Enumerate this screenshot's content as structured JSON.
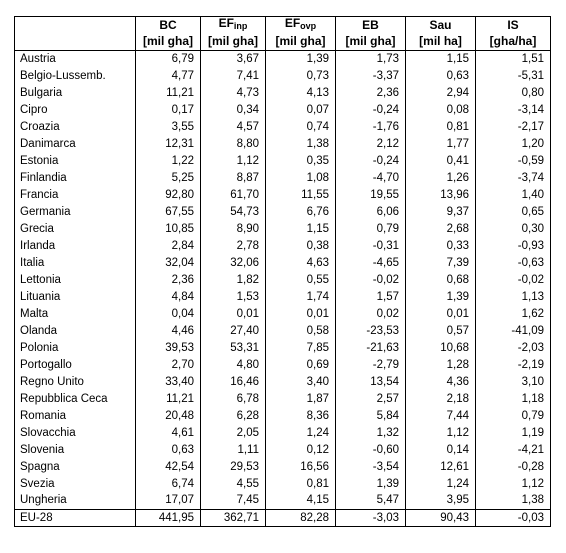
{
  "table": {
    "columns": [
      {
        "label": "BC",
        "unit": "[mil gha]"
      },
      {
        "label": "EF",
        "sub": "inp",
        "unit": "[mil gha]"
      },
      {
        "label": "EF",
        "sub": "ovp",
        "unit": "[mil gha]"
      },
      {
        "label": "EB",
        "unit": "[mil gha]"
      },
      {
        "label": "Sau",
        "unit": "[mil ha]"
      },
      {
        "label": "IS",
        "unit": "[gha/ha]"
      }
    ],
    "rows": [
      [
        "Austria",
        "6,79",
        "3,67",
        "1,39",
        "1,73",
        "1,15",
        "1,51"
      ],
      [
        "Belgio-Lussemb.",
        "4,77",
        "7,41",
        "0,73",
        "-3,37",
        "0,63",
        "-5,31"
      ],
      [
        "Bulgaria",
        "11,21",
        "4,73",
        "4,13",
        "2,36",
        "2,94",
        "0,80"
      ],
      [
        "Cipro",
        "0,17",
        "0,34",
        "0,07",
        "-0,24",
        "0,08",
        "-3,14"
      ],
      [
        "Croazia",
        "3,55",
        "4,57",
        "0,74",
        "-1,76",
        "0,81",
        "-2,17"
      ],
      [
        "Danimarca",
        "12,31",
        "8,80",
        "1,38",
        "2,12",
        "1,77",
        "1,20"
      ],
      [
        "Estonia",
        "1,22",
        "1,12",
        "0,35",
        "-0,24",
        "0,41",
        "-0,59"
      ],
      [
        "Finlandia",
        "5,25",
        "8,87",
        "1,08",
        "-4,70",
        "1,26",
        "-3,74"
      ],
      [
        "Francia",
        "92,80",
        "61,70",
        "11,55",
        "19,55",
        "13,96",
        "1,40"
      ],
      [
        "Germania",
        "67,55",
        "54,73",
        "6,76",
        "6,06",
        "9,37",
        "0,65"
      ],
      [
        "Grecia",
        "10,85",
        "8,90",
        "1,15",
        "0,79",
        "2,68",
        "0,30"
      ],
      [
        "Irlanda",
        "2,84",
        "2,78",
        "0,38",
        "-0,31",
        "0,33",
        "-0,93"
      ],
      [
        "Italia",
        "32,04",
        "32,06",
        "4,63",
        "-4,65",
        "7,39",
        "-0,63"
      ],
      [
        "Lettonia",
        "2,36",
        "1,82",
        "0,55",
        "-0,02",
        "0,68",
        "-0,02"
      ],
      [
        "Lituania",
        "4,84",
        "1,53",
        "1,74",
        "1,57",
        "1,39",
        "1,13"
      ],
      [
        "Malta",
        "0,04",
        "0,01",
        "0,01",
        "0,02",
        "0,01",
        "1,62"
      ],
      [
        "Olanda",
        "4,46",
        "27,40",
        "0,58",
        "-23,53",
        "0,57",
        "-41,09"
      ],
      [
        "Polonia",
        "39,53",
        "53,31",
        "7,85",
        "-21,63",
        "10,68",
        "-2,03"
      ],
      [
        "Portogallo",
        "2,70",
        "4,80",
        "0,69",
        "-2,79",
        "1,28",
        "-2,19"
      ],
      [
        "Regno Unito",
        "33,40",
        "16,46",
        "3,40",
        "13,54",
        "4,36",
        "3,10"
      ],
      [
        "Repubblica Ceca",
        "11,21",
        "6,78",
        "1,87",
        "2,57",
        "2,18",
        "1,18"
      ],
      [
        "Romania",
        "20,48",
        "6,28",
        "8,36",
        "5,84",
        "7,44",
        "0,79"
      ],
      [
        "Slovacchia",
        "4,61",
        "2,05",
        "1,24",
        "1,32",
        "1,12",
        "1,19"
      ],
      [
        "Slovenia",
        "0,63",
        "1,11",
        "0,12",
        "-0,60",
        "0,14",
        "-4,21"
      ],
      [
        "Spagna",
        "42,54",
        "29,53",
        "16,56",
        "-3,54",
        "12,61",
        "-0,28"
      ],
      [
        "Svezia",
        "6,74",
        "4,55",
        "0,81",
        "1,39",
        "1,24",
        "1,12"
      ],
      [
        "Ungheria",
        "17,07",
        "7,45",
        "4,15",
        "5,47",
        "3,95",
        "1,38"
      ]
    ],
    "total": [
      "EU-28",
      "441,95",
      "362,71",
      "82,28",
      "-3,03",
      "90,43",
      "-0,03"
    ]
  }
}
